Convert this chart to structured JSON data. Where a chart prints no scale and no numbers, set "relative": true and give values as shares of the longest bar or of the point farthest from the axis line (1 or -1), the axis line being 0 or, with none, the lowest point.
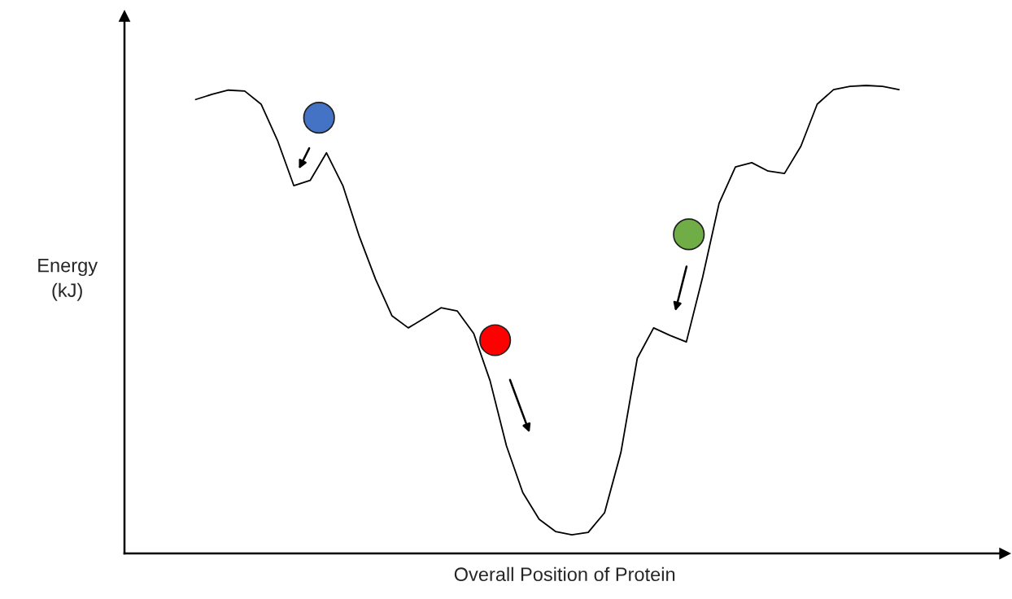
{
  "chart_data": {
    "type": "line",
    "relative": true,
    "xlabel": "Overall Position of Protein",
    "ylabel": "Energy\n(kJ)",
    "categories": [
      null,
      null,
      null,
      null,
      null,
      null,
      null,
      null,
      null,
      null,
      null,
      null,
      null,
      null,
      null,
      null,
      null,
      null,
      null,
      null,
      null,
      null,
      null,
      null,
      null,
      null,
      null,
      null,
      null,
      null,
      null,
      null,
      null,
      null,
      null,
      null,
      null,
      null,
      null,
      null,
      null,
      null,
      null,
      null
    ],
    "series": [
      {
        "color": "#000000",
        "values": [
          0.97,
          0.981,
          0.99,
          0.988,
          0.96,
          0.883,
          0.786,
          0.797,
          0.856,
          0.786,
          0.678,
          0.586,
          0.508,
          0.482,
          0.503,
          0.525,
          0.518,
          0.47,
          0.369,
          0.23,
          0.13,
          0.073,
          0.047,
          0.04,
          0.045,
          0.087,
          0.216,
          0.417,
          0.482,
          0.466,
          0.452,
          0.591,
          0.748,
          0.826,
          0.835,
          0.817,
          0.812,
          0.87,
          0.96,
          0.991,
          0.998,
          1.0,
          0.998,
          0.991
        ]
      }
    ],
    "legend": false,
    "tick_labels": false
  }
}
